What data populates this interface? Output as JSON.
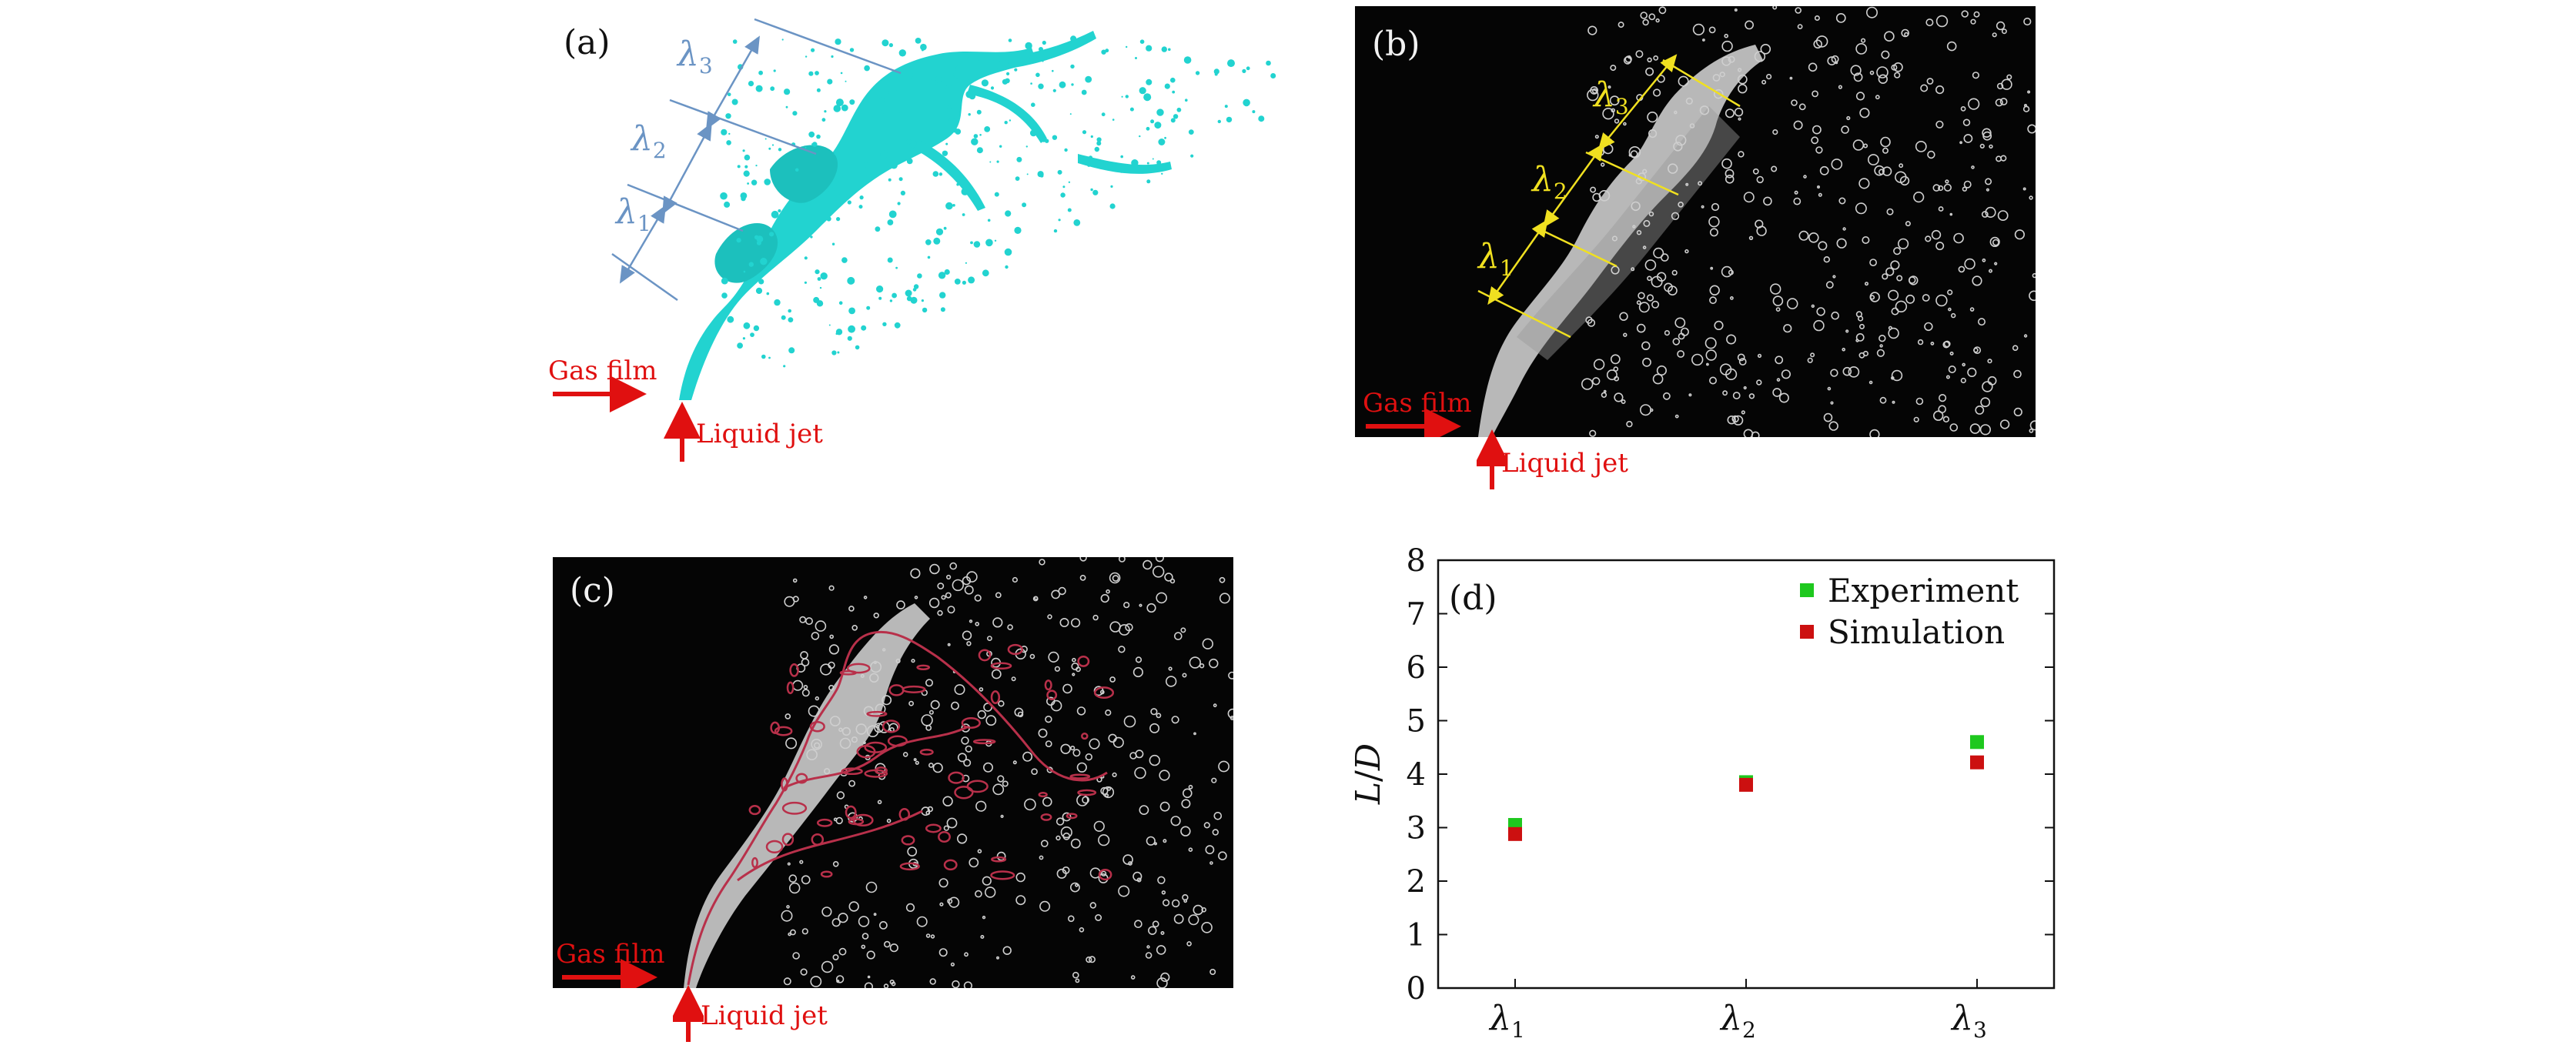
{
  "panels": {
    "a": {
      "label": "(a)",
      "gas_film": "Gas film",
      "liquid_jet": "Liquid jet",
      "lambdas": [
        {
          "sym": "λ",
          "sub": "1"
        },
        {
          "sym": "λ",
          "sub": "2"
        },
        {
          "sym": "λ",
          "sub": "3"
        }
      ],
      "colors": {
        "jet": "#22d3d0",
        "annotation": "#6b94c4",
        "arrow": "#e01010"
      }
    },
    "b": {
      "label": "(b)",
      "gas_film": "Gas film",
      "liquid_jet": "Liquid jet",
      "lambdas": [
        {
          "sym": "λ",
          "sub": "1"
        },
        {
          "sym": "λ",
          "sub": "2"
        },
        {
          "sym": "λ",
          "sub": "3"
        }
      ],
      "colors": {
        "annotation": "#f0e020",
        "arrow": "#e01010"
      }
    },
    "c": {
      "label": "(c)",
      "gas_film": "Gas film",
      "liquid_jet": "Liquid jet",
      "colors": {
        "contour": "#b8304a",
        "arrow": "#e01010"
      }
    }
  },
  "chart_data": {
    "type": "scatter",
    "panel_label": "(d)",
    "categories": [
      "λ1",
      "λ2",
      "λ3"
    ],
    "category_labels": [
      {
        "sym": "λ",
        "sub": "1"
      },
      {
        "sym": "λ",
        "sub": "2"
      },
      {
        "sym": "λ",
        "sub": "3"
      }
    ],
    "ylabel": "L/D",
    "ylabel_parts": {
      "a": "L",
      "sep": "/",
      "b": "D"
    },
    "ylim": [
      0,
      8
    ],
    "yticks": [
      "0",
      "1",
      "2",
      "3",
      "4",
      "5",
      "6",
      "7",
      "8"
    ],
    "legend_position": "top-right",
    "series": [
      {
        "name": "Experiment",
        "color": "#1ec81e",
        "values": [
          3.05,
          3.85,
          4.6
        ]
      },
      {
        "name": "Simulation",
        "color": "#cc1010",
        "values": [
          2.88,
          3.8,
          4.22
        ]
      }
    ]
  }
}
